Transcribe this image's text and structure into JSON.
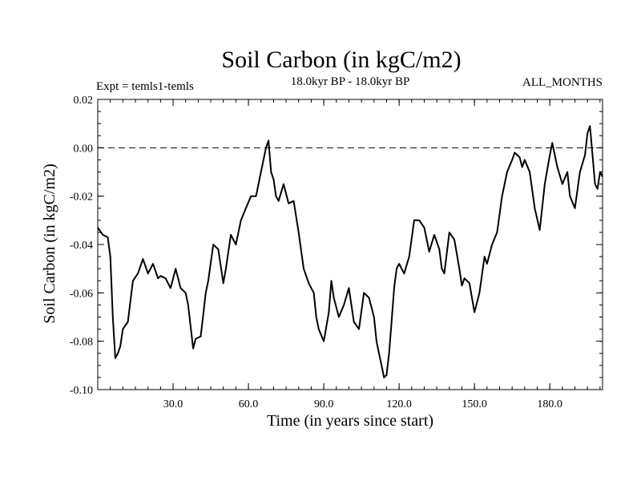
{
  "header": {
    "title": "Soil Carbon (in kgC/m2)",
    "expt": "Expt = temls1-temls",
    "period": "18.0kyr BP - 18.0kyr BP",
    "months": "ALL_MONTHS"
  },
  "chart_data": {
    "type": "line",
    "title": "Soil Carbon (in kgC/m2)",
    "xlabel": "Time (in years since start)",
    "ylabel": "Soil Carbon (in kgC/m2)",
    "xlim": [
      0,
      201
    ],
    "ylim": [
      -0.1,
      0.02
    ],
    "x_ticks": [
      30,
      60,
      90,
      120,
      150,
      180
    ],
    "x_tick_labels": [
      "30.0",
      "60.0",
      "90.0",
      "120.0",
      "150.0",
      "180.0"
    ],
    "y_ticks": [
      0.02,
      0.0,
      -0.02,
      -0.04,
      -0.06,
      -0.08,
      -0.1
    ],
    "y_tick_labels": [
      "0.02",
      "0.00",
      "-0.02",
      "-0.04",
      "-0.06",
      "-0.08",
      "-0.10"
    ],
    "reference_line": {
      "y": 0.0,
      "style": "dashed"
    },
    "grid": false,
    "series": [
      {
        "name": "Soil Carbon",
        "x": [
          0,
          2,
          4,
          5,
          6,
          7,
          8,
          9,
          10,
          12,
          14,
          16,
          18,
          20,
          22,
          24,
          25,
          27,
          29,
          31,
          33,
          35,
          36,
          38,
          39,
          41,
          43,
          44,
          46,
          48,
          50,
          51,
          53,
          55,
          57,
          59,
          61,
          63,
          65,
          67,
          68,
          69,
          70,
          71,
          72,
          74,
          76,
          78,
          80,
          82,
          84,
          86,
          87,
          88,
          90,
          92,
          93,
          94,
          96,
          98,
          100,
          102,
          104,
          106,
          108,
          110,
          111,
          112,
          113,
          114,
          115,
          116,
          117,
          118,
          119,
          120,
          122,
          124,
          126,
          128,
          130,
          132,
          134,
          136,
          137,
          138,
          140,
          142,
          144,
          145,
          146,
          148,
          150,
          152,
          154,
          155,
          157,
          159,
          161,
          163,
          165,
          166,
          168,
          169,
          170,
          172,
          174,
          176,
          178,
          180,
          181,
          183,
          185,
          187,
          188,
          190,
          192,
          194,
          195,
          196,
          197,
          198,
          199,
          200,
          201
        ],
        "y": [
          -0.033,
          -0.036,
          -0.037,
          -0.045,
          -0.07,
          -0.087,
          -0.085,
          -0.082,
          -0.075,
          -0.072,
          -0.055,
          -0.052,
          -0.046,
          -0.052,
          -0.048,
          -0.054,
          -0.053,
          -0.054,
          -0.058,
          -0.05,
          -0.058,
          -0.06,
          -0.065,
          -0.083,
          -0.079,
          -0.078,
          -0.06,
          -0.055,
          -0.04,
          -0.042,
          -0.056,
          -0.05,
          -0.036,
          -0.04,
          -0.03,
          -0.025,
          -0.02,
          -0.02,
          -0.01,
          0.0,
          0.003,
          -0.01,
          -0.013,
          -0.02,
          -0.022,
          -0.015,
          -0.023,
          -0.022,
          -0.035,
          -0.05,
          -0.056,
          -0.06,
          -0.07,
          -0.075,
          -0.08,
          -0.068,
          -0.055,
          -0.062,
          -0.07,
          -0.065,
          -0.058,
          -0.072,
          -0.075,
          -0.06,
          -0.062,
          -0.07,
          -0.08,
          -0.085,
          -0.09,
          -0.095,
          -0.094,
          -0.085,
          -0.072,
          -0.058,
          -0.05,
          -0.048,
          -0.052,
          -0.045,
          -0.03,
          -0.03,
          -0.033,
          -0.043,
          -0.036,
          -0.042,
          -0.05,
          -0.052,
          -0.035,
          -0.038,
          -0.05,
          -0.057,
          -0.054,
          -0.056,
          -0.068,
          -0.06,
          -0.045,
          -0.048,
          -0.04,
          -0.035,
          -0.02,
          -0.01,
          -0.005,
          -0.002,
          -0.004,
          -0.008,
          -0.005,
          -0.01,
          -0.025,
          -0.034,
          -0.015,
          -0.003,
          0.002,
          -0.008,
          -0.015,
          -0.01,
          -0.02,
          -0.025,
          -0.01,
          -0.003,
          0.006,
          0.009,
          -0.003,
          -0.015,
          -0.017,
          -0.01,
          -0.012
        ]
      }
    ]
  }
}
